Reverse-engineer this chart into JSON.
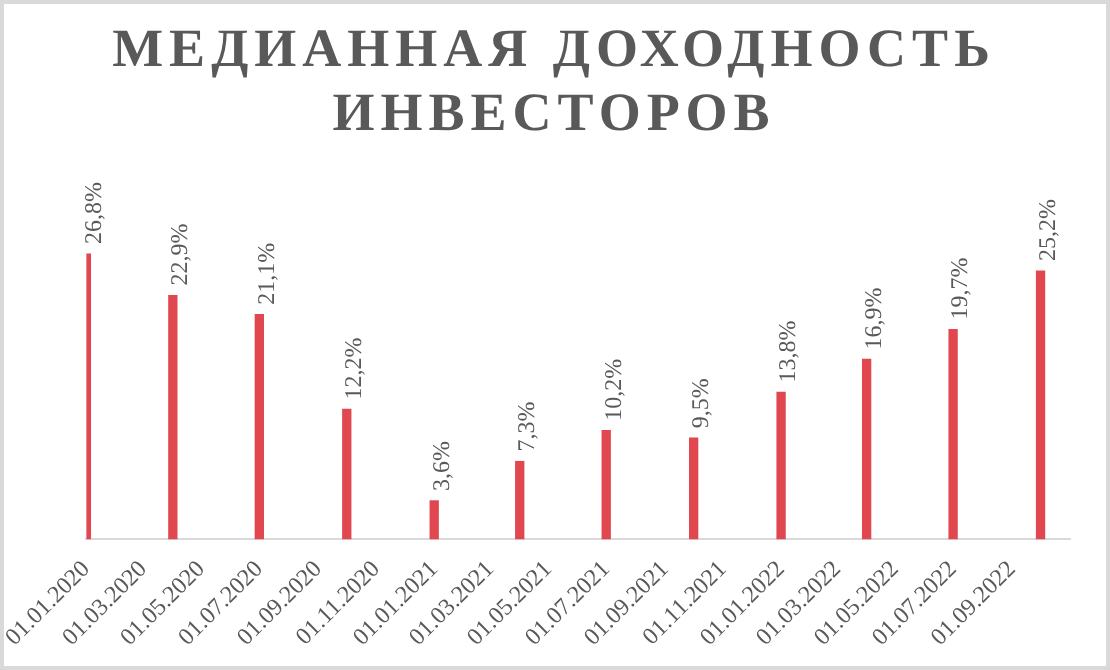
{
  "chart_data": {
    "type": "bar",
    "title": "МЕДИАННАЯ ДОХОДНОСТЬ ИНВЕСТОРОВ",
    "x": [
      "2020-01",
      "2020-04",
      "2020-07",
      "2020-10",
      "2021-01",
      "2021-04",
      "2021-07",
      "2021-10",
      "2022-01",
      "2022-04",
      "2022-07",
      "2022-10"
    ],
    "series": [
      {
        "color": "#e0474f",
        "values": [
          26.8,
          22.9,
          21.1,
          12.2,
          3.6,
          7.3,
          10.2,
          9.5,
          13.8,
          16.9,
          19.7,
          25.2
        ],
        "value_labels": [
          "26,8%",
          "22,9%",
          "21,1%",
          "12,2%",
          "3,6%",
          "7,3%",
          "10,2%",
          "9,5%",
          "13,8%",
          "16,9%",
          "19,7%",
          "25,2%"
        ]
      }
    ],
    "xlim": [
      "2020-01-01",
      "2022-11-01"
    ],
    "xticks": [
      {
        "value": "2020-01-01",
        "label": "01.01.2020"
      },
      {
        "value": "2020-03-01",
        "label": "01.03.2020"
      },
      {
        "value": "2020-05-01",
        "label": "01.05.2020"
      },
      {
        "value": "2020-07-01",
        "label": "01.07.2020"
      },
      {
        "value": "2020-09-01",
        "label": "01.09.2020"
      },
      {
        "value": "2020-11-01",
        "label": "01.11.2020"
      },
      {
        "value": "2021-01-01",
        "label": "01.01.2021"
      },
      {
        "value": "2021-03-01",
        "label": "01.03.2021"
      },
      {
        "value": "2021-05-01",
        "label": "01.05.2021"
      },
      {
        "value": "2021-07-01",
        "label": "01.07.2021"
      },
      {
        "value": "2021-09-01",
        "label": "01.09.2021"
      },
      {
        "value": "2021-11-01",
        "label": "01.11.2021"
      },
      {
        "value": "2022-01-01",
        "label": "01.01.2022"
      },
      {
        "value": "2022-03-01",
        "label": "01.03.2022"
      },
      {
        "value": "2022-05-01",
        "label": "01.05.2022"
      },
      {
        "value": "2022-07-01",
        "label": "01.07.2022"
      },
      {
        "value": "2022-09-01",
        "label": "01.09.2022"
      }
    ],
    "tick_labels": "x",
    "grid": false,
    "legend": false
  }
}
